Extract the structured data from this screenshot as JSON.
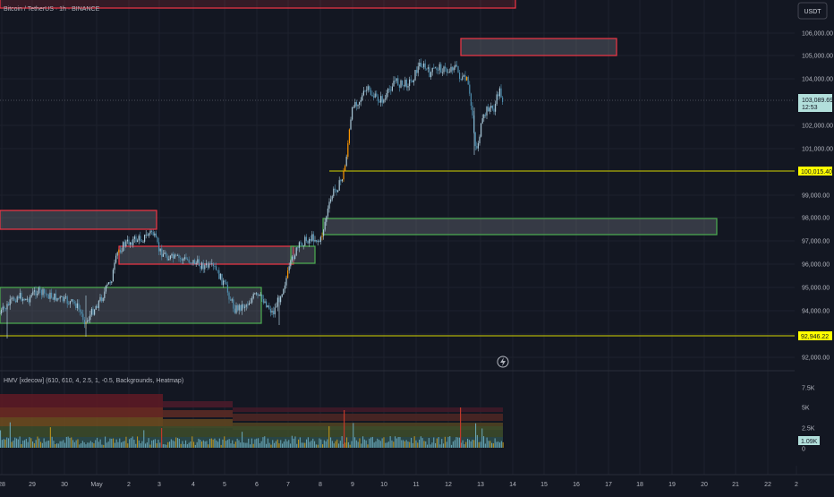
{
  "header": {
    "symbol_title": "Bitcoin / TetherUS · 1h · BINANCE",
    "currency_button": "USDT"
  },
  "price_axis": {
    "ticks": [
      "106,000.00",
      "105,000.00",
      "104,000.00",
      "102,000.00",
      "101,000.00",
      "99,000.00",
      "98,000.00",
      "97,000.00",
      "96,000.00",
      "95,000.00",
      "94,000.00",
      "93,000.00",
      "92,000.00"
    ],
    "current_price": "103,089.69",
    "countdown": "12:53",
    "level_upper": "100,015.40",
    "level_lower": "92,946.22"
  },
  "time_axis": {
    "labels": [
      "28",
      "29",
      "30",
      "May",
      "2",
      "3",
      "4",
      "5",
      "6",
      "7",
      "8",
      "9",
      "10",
      "11",
      "12",
      "13",
      "14",
      "15",
      "16",
      "17",
      "18",
      "19",
      "20",
      "21",
      "22",
      "2"
    ]
  },
  "indicator": {
    "title": "HMV [xdecow] (610, 610, 4, 2.5, 1, -0.5, Backgrounds, Heatmap)",
    "ticks": [
      "7.5K",
      "5K",
      "2.5K",
      "0"
    ],
    "current_value": "1.09K"
  },
  "colors": {
    "background": "#131722",
    "supply_zone": "#f23645",
    "demand_zone": "#4caf50",
    "level_line": "#d4d400",
    "candle_up": "#a9c8d8",
    "candle_down": "#4f8fb0",
    "highlight_candle": "#ff9800",
    "price_label_bg": "#b2dfdb"
  },
  "icons": {
    "alert": "lightning-icon"
  }
}
